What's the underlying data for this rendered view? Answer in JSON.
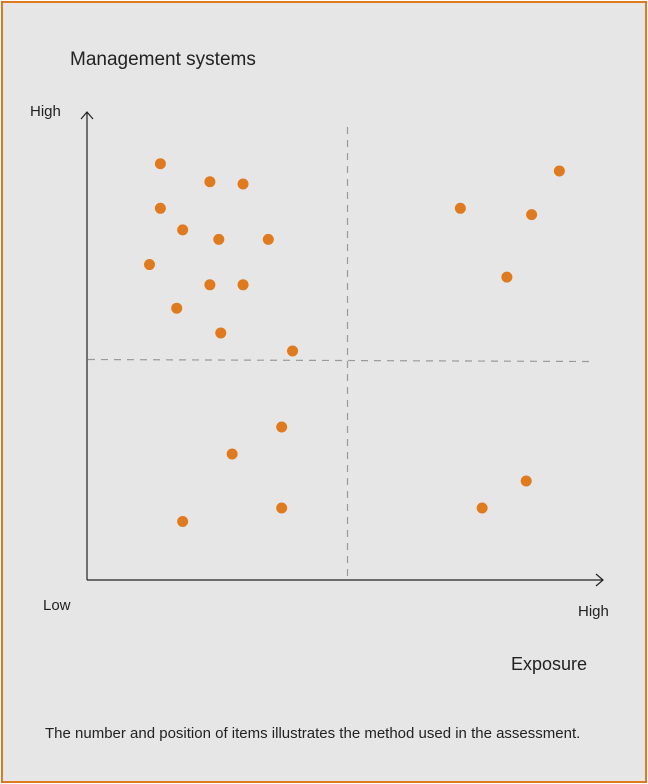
{
  "chart_data": {
    "type": "scatter",
    "title": "Management systems",
    "ylabel": "",
    "xlabel": "Exposure",
    "y_tick_labels": {
      "high": "High"
    },
    "x_tick_labels": {
      "low": "Low",
      "high": "High"
    },
    "xlim": [
      0,
      10
    ],
    "ylim": [
      0,
      10
    ],
    "grid": false,
    "quadrant_dividers": {
      "x": 5.0,
      "y": 4.9
    },
    "point_color": "#e07a1f",
    "series": [
      {
        "x": [
          1.22,
          1.22,
          1.67,
          1.0,
          2.22,
          2.4,
          2.89,
          2.89,
          3.4,
          2.22,
          1.55,
          2.44,
          3.89,
          7.28,
          8.72,
          9.28,
          8.22,
          3.67,
          2.67,
          3.67,
          1.67,
          8.61,
          7.72
        ],
        "y": [
          9.25,
          8.26,
          7.78,
          7.01,
          8.85,
          7.57,
          8.8,
          6.56,
          7.57,
          6.56,
          6.04,
          5.49,
          5.09,
          8.26,
          8.12,
          9.09,
          6.73,
          3.4,
          2.8,
          1.6,
          1.3,
          2.2,
          1.6
        ]
      }
    ]
  },
  "caption": "The number and position of items illustrates the method used in the assessment.",
  "colors": {
    "border": "#e07a1f",
    "background": "#e6e6e6",
    "points": "#e07a1f",
    "axis": "#222222",
    "divider": "#9a9a9a"
  }
}
